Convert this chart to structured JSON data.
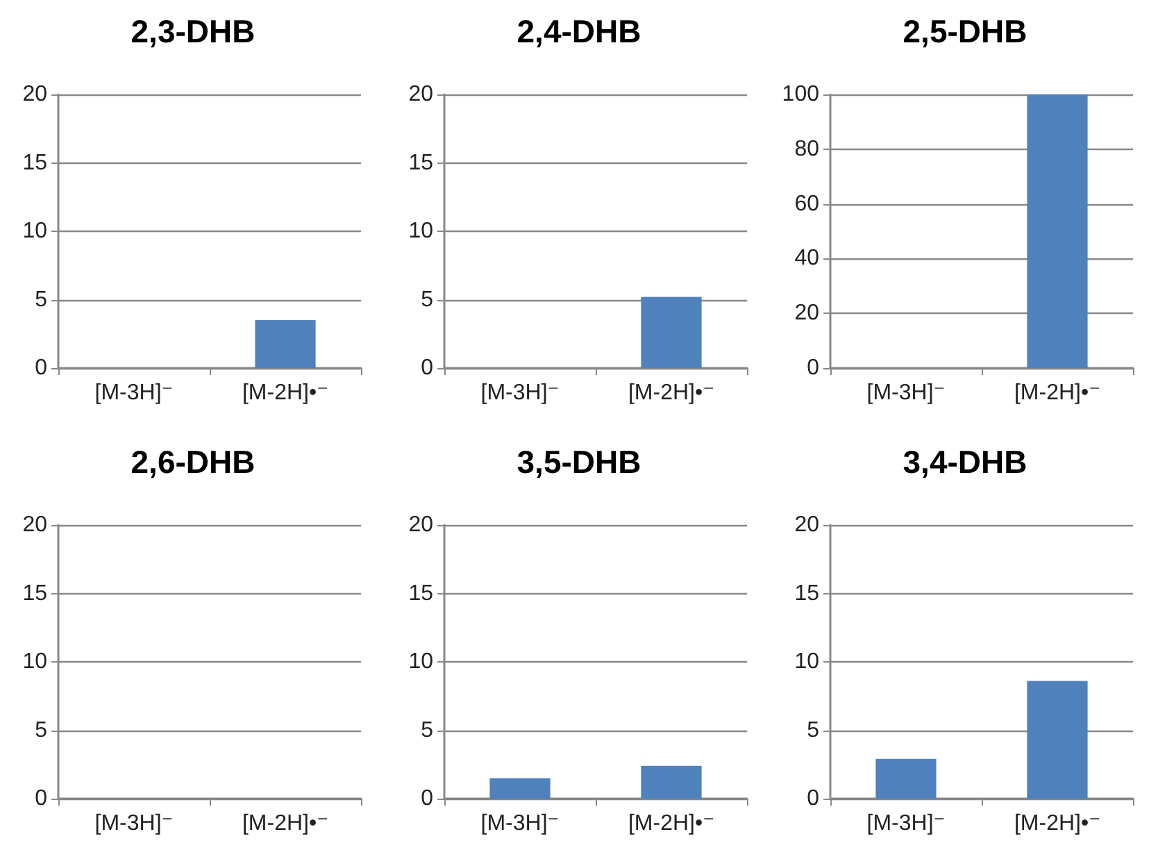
{
  "chart_data": [
    {
      "type": "bar",
      "title": "2,3-DHB",
      "categories": [
        "[M-3H]⁻",
        "[M-2H]•⁻"
      ],
      "values": [
        0,
        3.5
      ],
      "color": "#4f81bd",
      "ylim": [
        0,
        20
      ],
      "yticks": [
        0,
        5,
        10,
        15,
        20
      ],
      "grid": "y"
    },
    {
      "type": "bar",
      "title": "2,4-DHB",
      "categories": [
        "[M-3H]⁻",
        "[M-2H]•⁻"
      ],
      "values": [
        0,
        5.2
      ],
      "color": "#4f81bd",
      "ylim": [
        0,
        20
      ],
      "yticks": [
        0,
        5,
        10,
        15,
        20
      ],
      "grid": "y"
    },
    {
      "type": "bar",
      "title": "2,5-DHB",
      "categories": [
        "[M-3H]⁻",
        "[M-2H]•⁻"
      ],
      "values": [
        0,
        100
      ],
      "color": "#4f81bd",
      "ylim": [
        0,
        100
      ],
      "yticks": [
        0,
        20,
        40,
        60,
        80,
        100
      ],
      "grid": "y"
    },
    {
      "type": "bar",
      "title": "2,6-DHB",
      "categories": [
        "[M-3H]⁻",
        "[M-2H]•⁻"
      ],
      "values": [
        0,
        0
      ],
      "color": "#4f81bd",
      "ylim": [
        0,
        20
      ],
      "yticks": [
        0,
        5,
        10,
        15,
        20
      ],
      "grid": "y"
    },
    {
      "type": "bar",
      "title": "3,5-DHB",
      "categories": [
        "[M-3H]⁻",
        "[M-2H]•⁻"
      ],
      "values": [
        1.5,
        2.4
      ],
      "color": "#4f81bd",
      "ylim": [
        0,
        20
      ],
      "yticks": [
        0,
        5,
        10,
        15,
        20
      ],
      "grid": "y"
    },
    {
      "type": "bar",
      "title": "3,4-DHB",
      "categories": [
        "[M-3H]⁻",
        "[M-2H]•⁻"
      ],
      "values": [
        2.9,
        8.6
      ],
      "color": "#4f81bd",
      "ylim": [
        0,
        20
      ],
      "yticks": [
        0,
        5,
        10,
        15,
        20
      ],
      "grid": "y"
    }
  ]
}
